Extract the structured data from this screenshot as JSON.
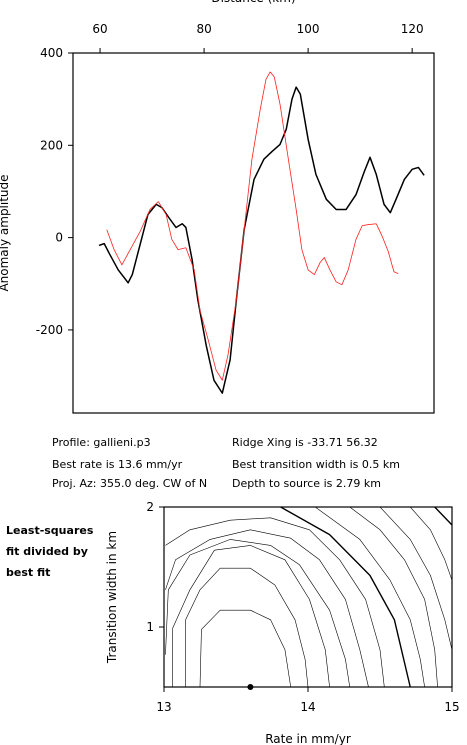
{
  "charts": [
    {
      "type": "line",
      "xlabel": "Distance (km)",
      "ylabel": "Anomaly amplitude",
      "xlim": [
        54.8,
        124.2
      ],
      "xticks": [
        60,
        80,
        100,
        120
      ],
      "ylim": [
        -380,
        400
      ],
      "yticks": [
        -200,
        0,
        200,
        400
      ],
      "series": [
        {
          "color": "#000000",
          "width": 1.5,
          "x": [
            59.8,
            60.8,
            61.9,
            63.5,
            65.4,
            66.2,
            67.7,
            69.2,
            70.8,
            71.9,
            73.5,
            74.6,
            75.8,
            76.5,
            77.7,
            78.8,
            80.4,
            81.9,
            83.5,
            85.0,
            86.2,
            87.7,
            89.6,
            91.5,
            93.1,
            94.6,
            95.8,
            96.9,
            97.7,
            98.5,
            100.0,
            101.5,
            103.5,
            105.4,
            107.3,
            109.2,
            110.8,
            111.9,
            113.1,
            114.6,
            115.8,
            116.9,
            118.5,
            120.0,
            121.2,
            122.3
          ],
          "values": [
            -17,
            -13,
            -37,
            -70,
            -98,
            -80,
            -15,
            50,
            72,
            65,
            39,
            22,
            30,
            22,
            -48,
            -135,
            -233,
            -309,
            -337,
            -265,
            -135,
            17,
            126,
            170,
            187,
            202,
            235,
            300,
            326,
            311,
            213,
            137,
            83,
            61,
            61,
            93,
            143,
            174,
            137,
            72,
            54,
            83,
            126,
            148,
            152,
            135
          ]
        },
        {
          "color": "#ff2020",
          "width": 0.8,
          "x": [
            61.3,
            62.7,
            64.2,
            65.8,
            67.7,
            69.6,
            71.2,
            72.7,
            73.8,
            75.0,
            76.5,
            78.1,
            79.2,
            80.8,
            82.3,
            83.5,
            84.6,
            86.2,
            87.7,
            89.2,
            90.8,
            91.9,
            92.7,
            93.5,
            94.6,
            96.2,
            97.7,
            98.8,
            100.0,
            101.2,
            102.3,
            103.1,
            104.2,
            105.4,
            106.5,
            107.7,
            109.2,
            110.4,
            111.5,
            113.1,
            114.2,
            115.4,
            116.5,
            117.3
          ],
          "values": [
            17,
            -26,
            -59,
            -26,
            13,
            61,
            78,
            50,
            -4,
            -26,
            -22,
            -70,
            -157,
            -222,
            -287,
            -309,
            -254,
            -135,
            17,
            170,
            278,
            343,
            359,
            348,
            289,
            170,
            61,
            -26,
            -70,
            -80,
            -54,
            -43,
            -70,
            -96,
            -102,
            -70,
            -4,
            26,
            28,
            30,
            4,
            -30,
            -74,
            -78
          ]
        }
      ]
    },
    {
      "type": "contour",
      "xlabel": "Rate in mm/yr",
      "ylabel": "Transition width in km",
      "xlim": [
        13,
        15
      ],
      "xticks": [
        13,
        14,
        15
      ],
      "ylim": [
        0.5,
        2
      ],
      "yticks": [
        1,
        2
      ],
      "best_point": {
        "x": 13.6,
        "y": 0.5
      },
      "series": [
        {
          "x": [
            13.25,
            13.26,
            13.39,
            13.6,
            13.74,
            13.84,
            13.88
          ],
          "values": [
            0.5,
            0.98,
            1.14,
            1.14,
            1.06,
            0.81,
            0.5
          ]
        },
        {
          "x": [
            13.15,
            13.15,
            13.25,
            13.39,
            13.6,
            13.77,
            13.91,
            13.98,
            14.0
          ],
          "values": [
            0.5,
            1.06,
            1.31,
            1.49,
            1.49,
            1.35,
            1.06,
            0.73,
            0.5
          ]
        },
        {
          "x": [
            13.06,
            13.06,
            13.18,
            13.35,
            13.6,
            13.84,
            14.01,
            14.12,
            14.15
          ],
          "values": [
            0.5,
            0.99,
            1.31,
            1.64,
            1.68,
            1.56,
            1.23,
            0.81,
            0.5
          ]
        },
        {
          "x": [
            13.01,
            13.03,
            13.18,
            13.46,
            13.74,
            13.94,
            14.15,
            14.26,
            14.29
          ],
          "values": [
            0.77,
            1.31,
            1.6,
            1.73,
            1.68,
            1.52,
            1.14,
            0.73,
            0.5
          ]
        },
        {
          "x": [
            13.01,
            13.08,
            13.32,
            13.6,
            13.88,
            14.08,
            14.26,
            14.36,
            14.42
          ],
          "values": [
            1.31,
            1.56,
            1.73,
            1.81,
            1.74,
            1.56,
            1.23,
            0.81,
            0.5
          ]
        },
        {
          "x": [
            13.01,
            13.18,
            13.46,
            13.74,
            14.01,
            14.22,
            14.4,
            14.5,
            14.53
          ],
          "values": [
            1.68,
            1.81,
            1.89,
            1.91,
            1.81,
            1.56,
            1.23,
            0.81,
            0.5
          ]
        },
        {
          "x": [
            13.81,
            14.15,
            14.43,
            14.6,
            14.71
          ],
          "values": [
            2.0,
            1.77,
            1.43,
            1.06,
            0.5
          ],
          "bold": true
        },
        {
          "x": [
            14.05,
            14.36,
            14.57,
            14.71,
            14.78,
            14.81
          ],
          "values": [
            2.0,
            1.73,
            1.39,
            1.06,
            0.73,
            0.5
          ]
        },
        {
          "x": [
            14.29,
            14.5,
            14.67,
            14.81,
            14.88,
            14.9
          ],
          "values": [
            2.0,
            1.81,
            1.56,
            1.23,
            0.81,
            0.5
          ]
        },
        {
          "x": [
            14.5,
            14.71,
            14.85,
            14.95,
            15.0
          ],
          "values": [
            2.0,
            1.73,
            1.43,
            1.06,
            0.81
          ]
        },
        {
          "x": [
            14.71,
            14.85,
            14.95,
            15.0
          ],
          "values": [
            2.0,
            1.81,
            1.56,
            1.39
          ]
        },
        {
          "x": [
            14.88,
            15.0
          ],
          "values": [
            2.0,
            1.85
          ],
          "bold": true
        }
      ]
    }
  ],
  "info": [
    "Profile: gallieni.p3",
    "Ridge Xing is -33.71 56.32",
    "Best rate is 13.6 mm/yr",
    "Best transition width is 0.5 km",
    "Proj. Az: 355.0 deg. CW of N",
    "Depth to source is   2.79 km"
  ],
  "note": [
    "Least-squares",
    "fit divided by",
    "best fit"
  ]
}
